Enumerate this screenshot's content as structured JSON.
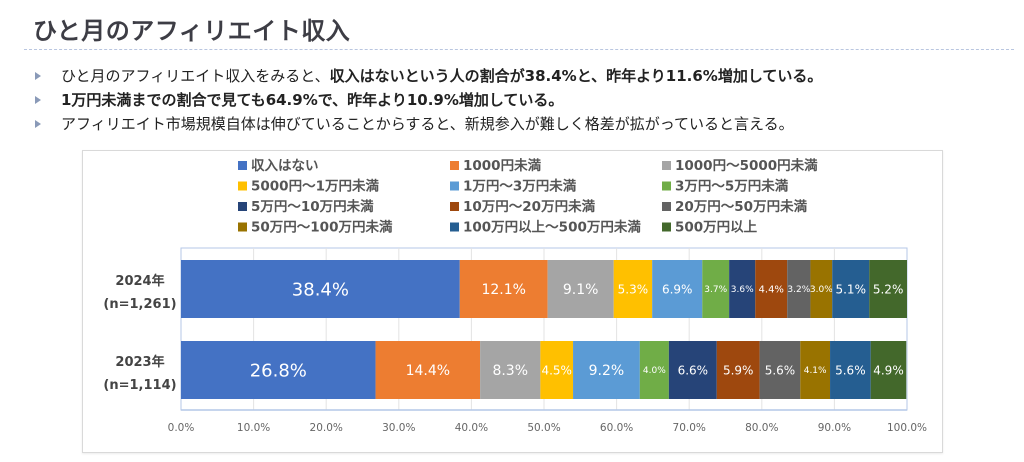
{
  "page": {
    "title": "ひと月のアフィリエイト収入",
    "bullets": [
      {
        "segments": [
          {
            "text": "ひと月のアフィリエイト収入をみると、",
            "bold": false
          },
          {
            "text": "収入はないという人の割合が38.4%と、昨年より11.6%増加している。",
            "bold": true
          }
        ]
      },
      {
        "segments": [
          {
            "text": "1万円未満までの割合で見ても64.9%で、昨年より10.9%増加している。",
            "bold": true
          }
        ]
      },
      {
        "segments": [
          {
            "text": "アフィリエイト市場規模自体は伸びていることからすると、新規参入が難しく格差が拡がっていると言える。",
            "bold": false
          }
        ]
      }
    ]
  },
  "chart_data": {
    "type": "bar",
    "orientation": "horizontal",
    "stacked": "percent",
    "title": "",
    "xlabel": "",
    "ylabel": "",
    "xlim": [
      0,
      100
    ],
    "grid": true,
    "legend_position": "top",
    "x_ticks": [
      "0.0%",
      "10.0%",
      "20.0%",
      "30.0%",
      "40.0%",
      "50.0%",
      "60.0%",
      "70.0%",
      "80.0%",
      "90.0%",
      "100.0%"
    ],
    "categories": [
      {
        "label": "2024年",
        "sublabel": "(n=1,261)"
      },
      {
        "label": "2023年",
        "sublabel": "(n=1,114)"
      }
    ],
    "series": [
      {
        "name": "収入はない",
        "color": "#4472C4",
        "label_color": "#ffffff",
        "values": [
          38.4,
          26.8
        ]
      },
      {
        "name": "1000円未満",
        "color": "#ED7D31",
        "label_color": "#ffffff",
        "values": [
          12.1,
          14.4
        ]
      },
      {
        "name": "1000円〜5000円未満",
        "color": "#A5A5A5",
        "label_color": "#ffffff",
        "values": [
          9.1,
          8.3
        ]
      },
      {
        "name": "5000円〜1万円未満",
        "color": "#FFC000",
        "label_color": "#5a4a00",
        "values": [
          5.3,
          4.5
        ]
      },
      {
        "name": "1万円〜3万円未満",
        "color": "#5B9BD5",
        "label_color": "#ffffff",
        "values": [
          6.9,
          9.2
        ]
      },
      {
        "name": "3万円〜5万円未満",
        "color": "#70AD47",
        "label_color": "#ffffff",
        "values": [
          3.7,
          4.0
        ]
      },
      {
        "name": "5万円〜10万円未満",
        "color": "#264478",
        "label_color": "#ffffff",
        "values": [
          3.6,
          6.6
        ]
      },
      {
        "name": "10万円〜20万円未満",
        "color": "#9E480E",
        "label_color": "#ffffff",
        "values": [
          4.4,
          5.9
        ]
      },
      {
        "name": "20万円〜50万円未満",
        "color": "#636363",
        "label_color": "#ffffff",
        "values": [
          3.2,
          5.6
        ]
      },
      {
        "name": "50万円〜100万円未満",
        "color": "#997300",
        "label_color": "#ffffff",
        "values": [
          3.0,
          4.1
        ]
      },
      {
        "name": "100万円以上〜500万円未満",
        "color": "#255E91",
        "label_color": "#ffffff",
        "values": [
          5.1,
          5.6
        ]
      },
      {
        "name": "500万円以上",
        "color": "#43682B",
        "label_color": "#ffffff",
        "values": [
          5.2,
          4.9
        ]
      }
    ]
  }
}
